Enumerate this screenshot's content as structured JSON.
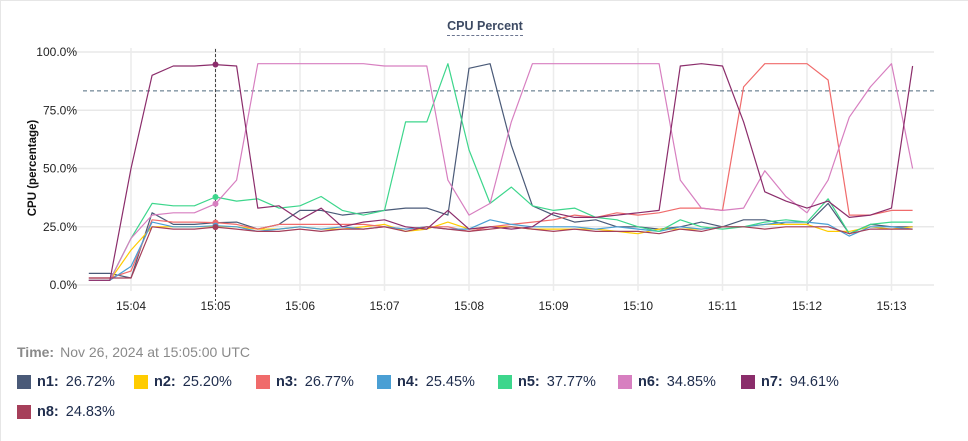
{
  "chart_data": {
    "type": "line",
    "title": "CPU Percent",
    "ylabel": "CPU (percentage)",
    "xlabel": "",
    "ylim": [
      0,
      100
    ],
    "y_ticks": [
      "0.0%",
      "25.0%",
      "50.0%",
      "75.0%",
      "100.0%"
    ],
    "y_tick_values": [
      0,
      25,
      50,
      75,
      100
    ],
    "x_ticks": [
      "15:04",
      "15:05",
      "15:06",
      "15:07",
      "15:08",
      "15:09",
      "15:10",
      "15:11",
      "15:12",
      "15:13"
    ],
    "grid": true,
    "threshold": 83.3,
    "cursor_time": "15:05:00",
    "x": [
      "15:03:30",
      "15:03:45",
      "15:04:00",
      "15:04:15",
      "15:04:30",
      "15:04:45",
      "15:05:00",
      "15:05:15",
      "15:05:30",
      "15:05:45",
      "15:06:00",
      "15:06:15",
      "15:06:30",
      "15:06:45",
      "15:07:00",
      "15:07:15",
      "15:07:30",
      "15:07:45",
      "15:08:00",
      "15:08:15",
      "15:08:30",
      "15:08:45",
      "15:09:00",
      "15:09:15",
      "15:09:30",
      "15:09:45",
      "15:10:00",
      "15:10:15",
      "15:10:30",
      "15:10:45",
      "15:11:00",
      "15:11:15",
      "15:11:30",
      "15:11:45",
      "15:12:00",
      "15:12:15",
      "15:12:30",
      "15:12:45",
      "15:13:00",
      "15:13:15"
    ],
    "series": [
      {
        "name": "n1",
        "color": "#4a5a78",
        "values": [
          5,
          5,
          3,
          31,
          26,
          26,
          26.72,
          27,
          24,
          26,
          32,
          32,
          30,
          31,
          32,
          33,
          33,
          30,
          93,
          95,
          60,
          34,
          30,
          27,
          28,
          25,
          25,
          24,
          25,
          27,
          25,
          28,
          28,
          26,
          26,
          35,
          22,
          26,
          25,
          25
        ]
      },
      {
        "name": "n2",
        "color": "#ffcc00",
        "values": [
          2,
          2,
          15,
          25,
          25,
          25,
          25.2,
          25,
          24,
          24,
          25,
          24,
          24,
          25,
          26,
          23,
          24,
          27,
          24,
          25,
          25,
          24,
          24,
          24,
          24,
          23,
          22,
          24,
          24,
          24,
          25,
          25,
          26,
          26,
          26,
          23,
          23,
          25,
          24,
          25
        ]
      },
      {
        "name": "n3",
        "color": "#f06b6b",
        "values": [
          3,
          3,
          6,
          28,
          27,
          27,
          26.77,
          26,
          24,
          26,
          26,
          26,
          26,
          26,
          25,
          24,
          25,
          25,
          23,
          25,
          26,
          27,
          28,
          30,
          29,
          31,
          30,
          31,
          33,
          33,
          32,
          85,
          95,
          95,
          95,
          88,
          30,
          30,
          32,
          32
        ]
      },
      {
        "name": "n4",
        "color": "#4a9fd4",
        "values": [
          2,
          2,
          8,
          27,
          25,
          25,
          25.45,
          25,
          23,
          24,
          25,
          24,
          25,
          24,
          25,
          24,
          25,
          24,
          24,
          28,
          26,
          25,
          25,
          25,
          24,
          25,
          24,
          23,
          25,
          24,
          25,
          25,
          26,
          27,
          27,
          26,
          21,
          25,
          25,
          24
        ]
      },
      {
        "name": "n5",
        "color": "#3dd68c",
        "values": [
          2,
          2,
          20,
          35,
          34,
          34,
          37.77,
          36,
          37,
          33,
          34,
          38,
          32,
          30,
          32,
          70,
          70,
          95,
          58,
          35,
          42,
          34,
          32,
          33,
          29,
          28,
          25,
          23,
          28,
          25,
          24,
          25,
          27,
          28,
          27,
          37,
          22,
          26,
          27,
          27
        ]
      },
      {
        "name": "n6",
        "color": "#d77fc0",
        "values": [
          2,
          2,
          20,
          30,
          31,
          31,
          34.85,
          45,
          95,
          95,
          95,
          95,
          95,
          95,
          94,
          94,
          94,
          45,
          30,
          35,
          70,
          95,
          95,
          95,
          95,
          95,
          95,
          95,
          45,
          33,
          32,
          33,
          49,
          38,
          31,
          45,
          72,
          85,
          95,
          50
        ]
      },
      {
        "name": "n7",
        "color": "#8b2d6b",
        "values": [
          2,
          2,
          50,
          90,
          94,
          94,
          94.61,
          94,
          33,
          34,
          28,
          33,
          25,
          27,
          28,
          25,
          24,
          32,
          24,
          25,
          24,
          25,
          31,
          29,
          29,
          30,
          31,
          32,
          94,
          95,
          94,
          70,
          40,
          36,
          33,
          36,
          29,
          30,
          33,
          94
        ]
      },
      {
        "name": "n8",
        "color": "#a63f5a",
        "values": [
          3,
          3,
          3,
          25,
          24,
          24,
          24.83,
          24,
          23,
          23,
          24,
          23,
          24,
          24,
          25,
          23,
          25,
          24,
          23,
          24,
          25,
          24,
          23,
          24,
          23,
          23,
          23,
          22,
          24,
          23,
          25,
          25,
          24,
          25,
          25,
          25,
          22,
          24,
          24,
          24
        ]
      }
    ]
  },
  "readout": {
    "time_label": "Time:",
    "time_value": "Nov 26, 2024 at 15:05:00 UTC",
    "items": [
      {
        "name": "n1:",
        "value": "26.72%",
        "color": "#4a5a78"
      },
      {
        "name": "n2:",
        "value": "25.20%",
        "color": "#ffcc00"
      },
      {
        "name": "n3:",
        "value": "26.77%",
        "color": "#f06b6b"
      },
      {
        "name": "n4:",
        "value": "25.45%",
        "color": "#4a9fd4"
      },
      {
        "name": "n5:",
        "value": "37.77%",
        "color": "#3dd68c"
      },
      {
        "name": "n6:",
        "value": "34.85%",
        "color": "#d77fc0"
      },
      {
        "name": "n7:",
        "value": "94.61%",
        "color": "#8b2d6b"
      },
      {
        "name": "n8:",
        "value": "24.83%",
        "color": "#a63f5a"
      }
    ]
  }
}
